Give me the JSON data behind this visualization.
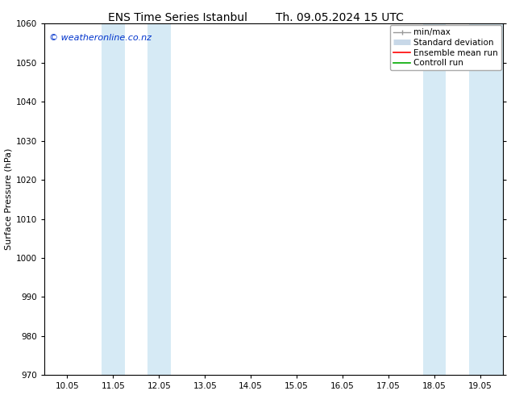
{
  "title_left": "ENS Time Series Istanbul",
  "title_right": "Th. 09.05.2024 15 UTC",
  "ylabel": "Surface Pressure (hPa)",
  "ylim": [
    970,
    1060
  ],
  "yticks": [
    970,
    980,
    990,
    1000,
    1010,
    1020,
    1030,
    1040,
    1050,
    1060
  ],
  "x_tick_labels": [
    "10.05",
    "11.05",
    "12.05",
    "13.05",
    "14.05",
    "15.05",
    "16.05",
    "17.05",
    "18.05",
    "19.05"
  ],
  "x_tick_positions": [
    0,
    1,
    2,
    3,
    4,
    5,
    6,
    7,
    8,
    9
  ],
  "xlim": [
    -0.5,
    9.5
  ],
  "shaded_bands": [
    {
      "x_start": 0.75,
      "x_end": 1.25
    },
    {
      "x_start": 1.75,
      "x_end": 2.25
    },
    {
      "x_start": 7.75,
      "x_end": 8.25
    },
    {
      "x_start": 8.75,
      "x_end": 9.5
    }
  ],
  "shaded_color": "#d6eaf5",
  "background_color": "#ffffff",
  "watermark_text": "© weatheronline.co.nz",
  "watermark_color": "#0033cc",
  "legend_entries": [
    {
      "label": "min/max",
      "color": "#999999",
      "lw": 1.0,
      "ls": "-"
    },
    {
      "label": "Standard deviation",
      "color": "#c8d8e8",
      "lw": 5,
      "ls": "-"
    },
    {
      "label": "Ensemble mean run",
      "color": "#ff0000",
      "lw": 1.2,
      "ls": "-"
    },
    {
      "label": "Controll run",
      "color": "#00aa00",
      "lw": 1.2,
      "ls": "-"
    }
  ],
  "spine_color": "#000000",
  "tick_color": "#000000",
  "font_color": "#000000",
  "title_fontsize": 10,
  "ylabel_fontsize": 8,
  "tick_fontsize": 7.5,
  "legend_fontsize": 7.5,
  "watermark_fontsize": 8
}
